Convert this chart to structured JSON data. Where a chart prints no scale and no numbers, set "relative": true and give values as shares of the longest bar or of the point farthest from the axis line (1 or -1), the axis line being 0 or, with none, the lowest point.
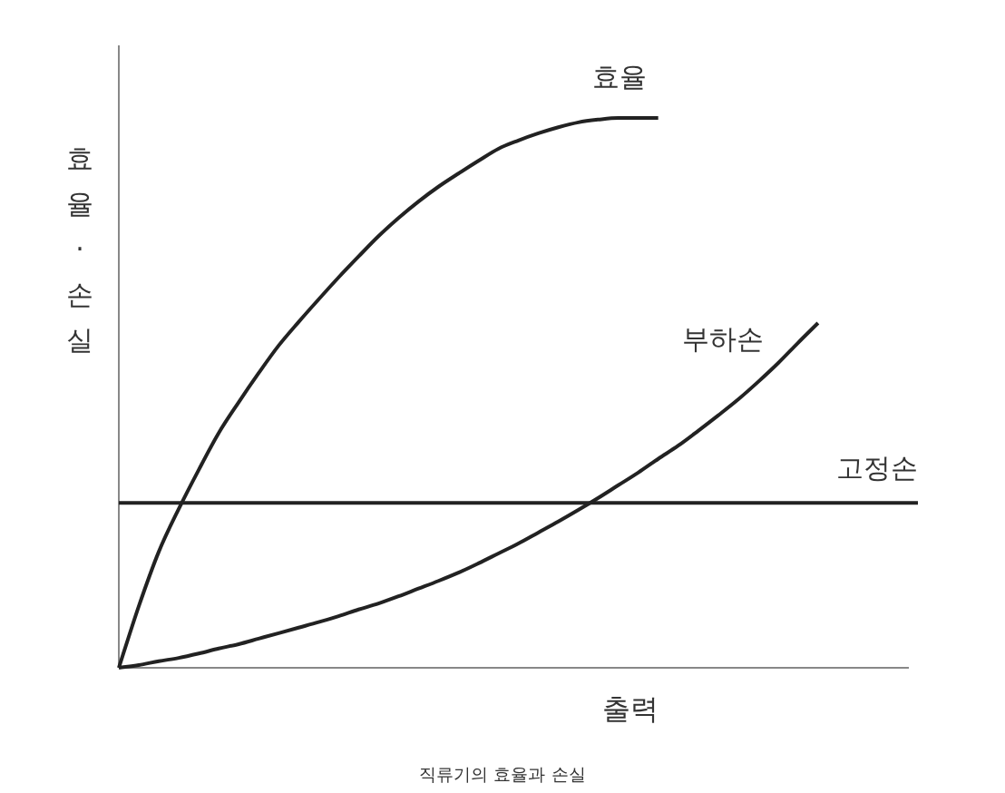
{
  "chart_data": {
    "type": "line",
    "relative": true,
    "xlabel": "출력",
    "ylabel": "효율·손실",
    "annotations": [
      "직류기의 효율과 손실"
    ],
    "categories": [
      null,
      null,
      null,
      null,
      null,
      null,
      null,
      null,
      null,
      null,
      null,
      null,
      null,
      null,
      null,
      null,
      null,
      null,
      null,
      null,
      null,
      null,
      null,
      null,
      null,
      null,
      null,
      null,
      null,
      null,
      null,
      null,
      null,
      null,
      null,
      null,
      null,
      null,
      null,
      null,
      null
    ],
    "series": [
      {
        "name": "효율",
        "color": "#222222",
        "values": [
          0,
          0.112,
          0.211,
          0.289,
          0.36,
          0.427,
          0.483,
          0.536,
          0.586,
          0.629,
          0.67,
          0.71,
          0.748,
          0.785,
          0.818,
          0.848,
          0.875,
          0.899,
          0.922,
          0.944,
          0.959,
          0.972,
          0.983,
          0.992,
          0.997,
          1,
          1,
          1,
          null,
          null,
          null,
          null,
          null,
          null,
          null,
          null,
          null,
          null,
          null,
          null,
          null
        ]
      },
      {
        "name": "부하손",
        "color": "#222222",
        "values": [
          0,
          0.005,
          0.012,
          0.018,
          0.026,
          0.035,
          0.043,
          0.053,
          0.063,
          0.073,
          0.083,
          0.094,
          0.106,
          0.117,
          0.13,
          0.144,
          0.158,
          0.173,
          0.19,
          0.208,
          0.226,
          0.246,
          0.266,
          0.287,
          0.309,
          0.332,
          0.355,
          0.38,
          0.404,
          0.431,
          0.459,
          0.488,
          0.52,
          0.554,
          0.591,
          0.627,
          null,
          null,
          null,
          null,
          null
        ]
      },
      {
        "name": "고정손",
        "color": "#222222",
        "values": [
          0.3,
          0.3,
          0.3,
          0.3,
          0.3,
          0.3,
          0.3,
          0.3,
          0.3,
          0.3,
          0.3,
          0.3,
          0.3,
          0.3,
          0.3,
          0.3,
          0.3,
          0.3,
          0.3,
          0.3,
          0.3,
          0.3,
          0.3,
          0.3,
          0.3,
          0.3,
          0.3,
          0.3,
          0.3,
          0.3,
          0.3,
          0.3,
          0.3,
          0.3,
          0.3,
          0.3,
          0.3,
          0.3,
          0.3,
          0.3,
          0.3
        ]
      }
    ],
    "marker": "none",
    "line_style": "solid"
  }
}
